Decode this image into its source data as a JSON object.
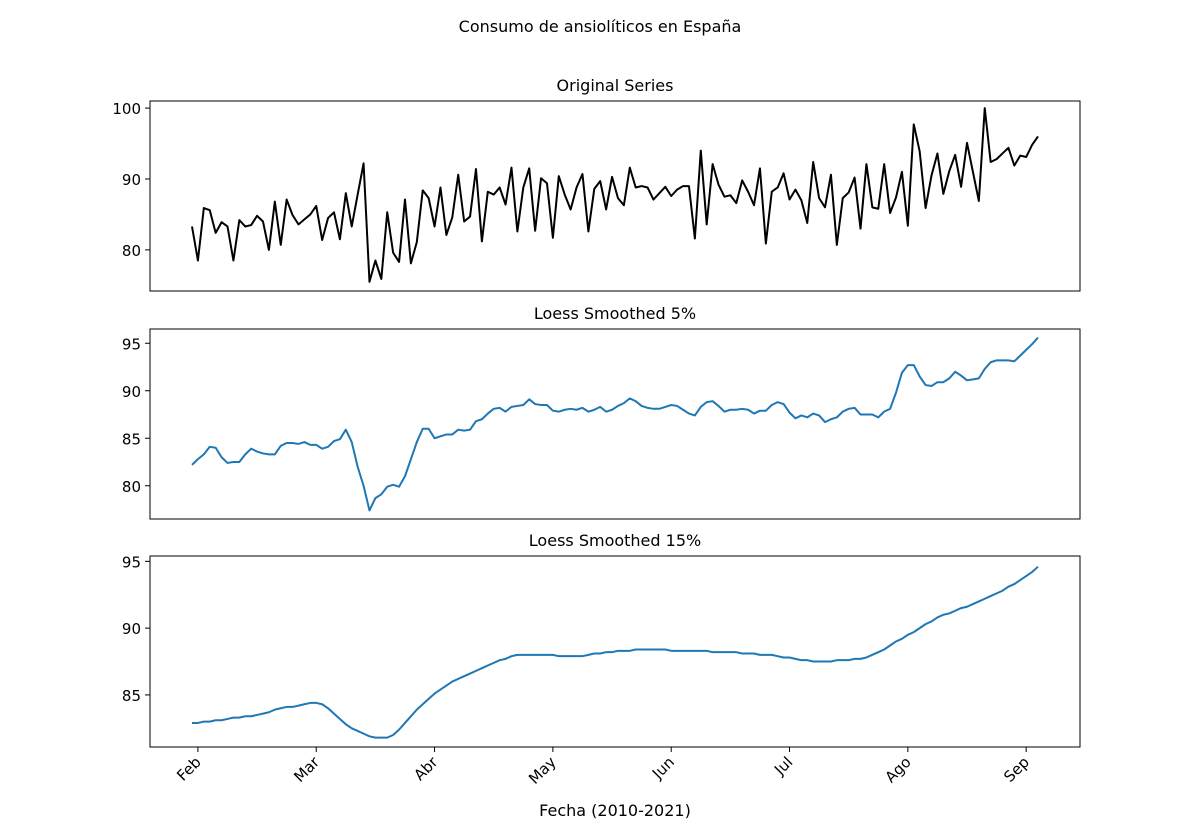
{
  "title": "Consumo de ansiolíticos en España",
  "chart_data": [
    {
      "type": "line",
      "title": "Original Series",
      "color": "#000000",
      "xlim": [
        -7.1,
        150.1
      ],
      "ylim": [
        74.2,
        101
      ],
      "yticks": [
        80,
        90,
        100
      ],
      "values": [
        83.3,
        78.5,
        85.9,
        85.6,
        82.4,
        83.9,
        83.3,
        78.5,
        84.2,
        83.3,
        83.5,
        84.8,
        84.0,
        80.0,
        86.8,
        80.7,
        87.1,
        84.9,
        83.6,
        84.3,
        85.0,
        86.2,
        81.4,
        84.5,
        85.3,
        81.5,
        88.0,
        83.3,
        87.8,
        92.2,
        75.5,
        78.5,
        75.9,
        85.3,
        79.6,
        78.3,
        87.1,
        78.1,
        81.1,
        88.4,
        87.3,
        83.3,
        88.8,
        82.1,
        84.6,
        90.6,
        84.0,
        84.7,
        91.4,
        81.2,
        88.2,
        87.8,
        88.8,
        86.4,
        91.6,
        82.6,
        88.8,
        91.5,
        82.7,
        90.1,
        89.4,
        81.7,
        90.4,
        87.8,
        85.7,
        88.8,
        90.7,
        82.6,
        88.6,
        89.7,
        85.7,
        90.3,
        87.3,
        86.3,
        91.6,
        88.8,
        89.0,
        88.8,
        87.1,
        88.0,
        88.9,
        87.6,
        88.5,
        89.0,
        89.0,
        81.6,
        94.0,
        83.6,
        92.1,
        89.2,
        87.5,
        87.7,
        86.6,
        89.8,
        88.2,
        86.3,
        91.5,
        80.9,
        88.2,
        88.8,
        90.8,
        87.1,
        88.5,
        87.0,
        83.8,
        92.4,
        87.3,
        86.0,
        90.6,
        80.7,
        87.3,
        88.1,
        90.2,
        83.0,
        92.1,
        86.0,
        85.8,
        92.1,
        85.2,
        87.4,
        91.0,
        83.4,
        97.7,
        93.9,
        85.9,
        90.5,
        93.6,
        87.9,
        91.1,
        93.4,
        88.9,
        95.1,
        91.0,
        86.9,
        100.0,
        92.4,
        92.8,
        93.6,
        94.4,
        91.9,
        93.3,
        93.1,
        94.8,
        96.0
      ]
    },
    {
      "type": "line",
      "title": "Loess Smoothed 5%",
      "color": "#1f77b4",
      "xlim": [
        -7.1,
        150.1
      ],
      "ylim": [
        76.5,
        96.5
      ],
      "yticks": [
        80,
        85,
        90,
        95
      ],
      "values": [
        82.2,
        82.8,
        83.3,
        84.1,
        84.0,
        83.0,
        82.4,
        82.5,
        82.5,
        83.3,
        83.9,
        83.6,
        83.4,
        83.3,
        83.3,
        84.2,
        84.5,
        84.5,
        84.4,
        84.6,
        84.3,
        84.3,
        83.9,
        84.1,
        84.7,
        84.9,
        85.9,
        84.6,
        82.0,
        80.0,
        77.4,
        78.7,
        79.1,
        79.9,
        80.1,
        79.9,
        81.0,
        82.8,
        84.6,
        86.0,
        86.0,
        85.0,
        85.2,
        85.4,
        85.4,
        85.9,
        85.8,
        85.9,
        86.8,
        87.0,
        87.6,
        88.1,
        88.2,
        87.8,
        88.3,
        88.4,
        88.5,
        89.1,
        88.6,
        88.5,
        88.5,
        87.9,
        87.8,
        88.0,
        88.1,
        88.0,
        88.2,
        87.8,
        88.0,
        88.3,
        87.8,
        88.0,
        88.4,
        88.7,
        89.2,
        88.9,
        88.4,
        88.2,
        88.1,
        88.1,
        88.3,
        88.5,
        88.4,
        88.0,
        87.6,
        87.4,
        88.3,
        88.8,
        88.9,
        88.4,
        87.8,
        88.0,
        88.0,
        88.1,
        88.0,
        87.6,
        87.9,
        87.9,
        88.5,
        88.8,
        88.6,
        87.7,
        87.1,
        87.4,
        87.2,
        87.6,
        87.4,
        86.7,
        87.0,
        87.2,
        87.8,
        88.1,
        88.2,
        87.5,
        87.5,
        87.5,
        87.2,
        87.8,
        88.1,
        89.8,
        91.9,
        92.7,
        92.7,
        91.5,
        90.6,
        90.5,
        90.9,
        90.9,
        91.3,
        92.0,
        91.6,
        91.1,
        91.2,
        91.3,
        92.3,
        93.0,
        93.2,
        93.2,
        93.2,
        93.1,
        93.7,
        94.3,
        94.9,
        95.6
      ]
    },
    {
      "type": "line",
      "title": "Loess Smoothed 15%",
      "color": "#1f77b4",
      "xlabel": "Fecha (2010-2021)",
      "xlim": [
        -7.1,
        150.1
      ],
      "ylim": [
        81.1,
        95.4
      ],
      "yticks": [
        85,
        90,
        95
      ],
      "xticks": [
        {
          "value": 1,
          "label": "Feb"
        },
        {
          "value": 21,
          "label": "Mar"
        },
        {
          "value": 41,
          "label": "Abr"
        },
        {
          "value": 61,
          "label": "May"
        },
        {
          "value": 81,
          "label": "Jun"
        },
        {
          "value": 101,
          "label": "Jul"
        },
        {
          "value": 121,
          "label": "Ago"
        },
        {
          "value": 141,
          "label": "Sep"
        }
      ],
      "values": [
        82.9,
        82.9,
        83.0,
        83.0,
        83.1,
        83.1,
        83.2,
        83.3,
        83.3,
        83.4,
        83.4,
        83.5,
        83.6,
        83.7,
        83.9,
        84.0,
        84.1,
        84.1,
        84.2,
        84.3,
        84.4,
        84.4,
        84.3,
        84.0,
        83.6,
        83.2,
        82.8,
        82.5,
        82.3,
        82.1,
        81.9,
        81.8,
        81.8,
        81.8,
        82.0,
        82.4,
        82.9,
        83.4,
        83.9,
        84.3,
        84.7,
        85.1,
        85.4,
        85.7,
        86.0,
        86.2,
        86.4,
        86.6,
        86.8,
        87.0,
        87.2,
        87.4,
        87.6,
        87.7,
        87.9,
        88.0,
        88.0,
        88.0,
        88.0,
        88.0,
        88.0,
        88.0,
        87.9,
        87.9,
        87.9,
        87.9,
        87.9,
        88.0,
        88.1,
        88.1,
        88.2,
        88.2,
        88.3,
        88.3,
        88.3,
        88.4,
        88.4,
        88.4,
        88.4,
        88.4,
        88.4,
        88.3,
        88.3,
        88.3,
        88.3,
        88.3,
        88.3,
        88.3,
        88.2,
        88.2,
        88.2,
        88.2,
        88.2,
        88.1,
        88.1,
        88.1,
        88.0,
        88.0,
        88.0,
        87.9,
        87.8,
        87.8,
        87.7,
        87.6,
        87.6,
        87.5,
        87.5,
        87.5,
        87.5,
        87.6,
        87.6,
        87.6,
        87.7,
        87.7,
        87.8,
        88.0,
        88.2,
        88.4,
        88.7,
        89.0,
        89.2,
        89.5,
        89.7,
        90.0,
        90.3,
        90.5,
        90.8,
        91.0,
        91.1,
        91.3,
        91.5,
        91.6,
        91.8,
        92.0,
        92.2,
        92.4,
        92.6,
        92.8,
        93.1,
        93.3,
        93.6,
        93.9,
        94.2,
        94.6
      ]
    }
  ]
}
